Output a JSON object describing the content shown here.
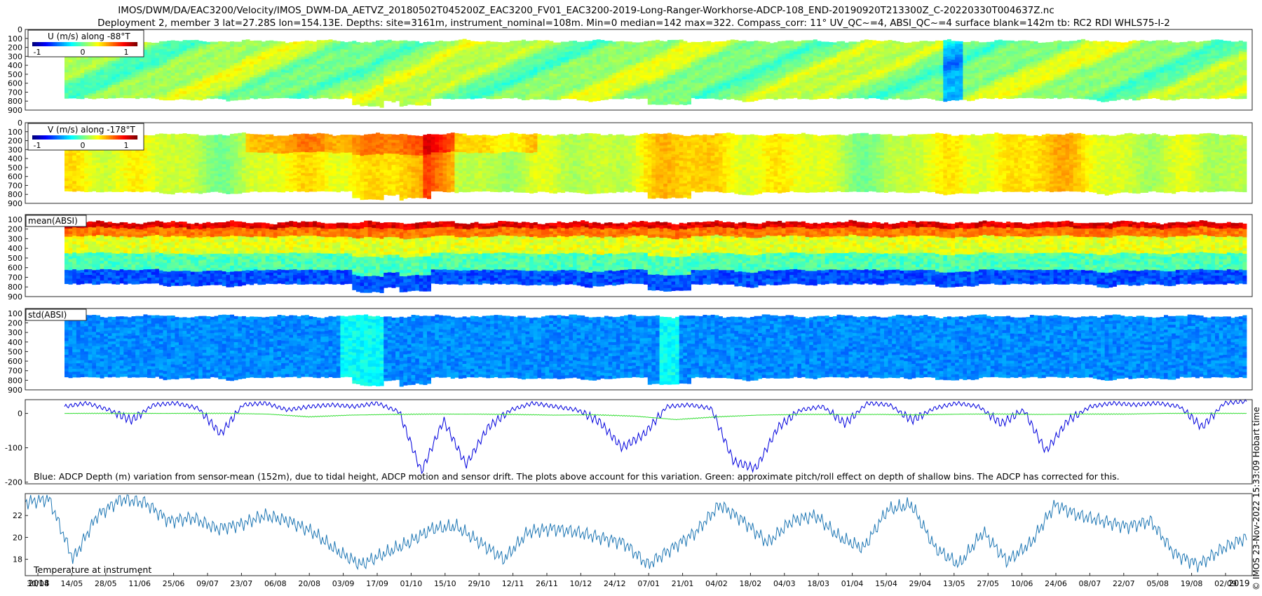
{
  "header": {
    "title_line1": "IMOS/DWM/DA/EAC3200/Velocity/IMOS_DWM-DA_AETVZ_20180502T045200Z_EAC3200_FV01_EAC3200-2019-Long-Ranger-Workhorse-ADCP-108_END-20190920T213300Z_C-20220330T004637Z.nc",
    "title_line2": "Deployment 2, member 3 lat=27.28S lon=154.13E. Depths: site=3161m, instrument_nominal=108m. Min=0 median=142 max=322. Compass_corr: 11° UV_QC~=4, ABSI_QC~=4 surface blank=142m tb: RC2 RDI WHLS75-I-2"
  },
  "side_label": "© IMOS 23-Nov-2022 15:33:09 Hobart time",
  "chart_data": [
    {
      "type": "heatmap",
      "legend_label": "U (m/s) along -88°T",
      "colorbar_ticks": [
        "-1",
        "0",
        "1"
      ],
      "y_ticks": [
        "0",
        "100",
        "200",
        "300",
        "400",
        "500",
        "600",
        "700",
        "800",
        "900"
      ],
      "ylim": [
        900,
        0
      ],
      "palette": "jet",
      "profile": "velocity_u",
      "colormap_range": [
        -1,
        1
      ],
      "y_range_m": [
        125,
        760
      ]
    },
    {
      "type": "heatmap",
      "legend_label": "V (m/s) along -178°T",
      "colorbar_ticks": [
        "-1",
        "0",
        "1"
      ],
      "y_ticks": [
        "0",
        "100",
        "200",
        "300",
        "400",
        "500",
        "600",
        "700",
        "800",
        "900"
      ],
      "ylim": [
        900,
        0
      ],
      "palette": "jet",
      "profile": "velocity_v",
      "colormap_range": [
        -1,
        1
      ],
      "y_range_m": [
        125,
        760
      ]
    },
    {
      "type": "heatmap",
      "legend_label": "mean(ABSI)",
      "y_ticks": [
        "100",
        "200",
        "300",
        "400",
        "500",
        "600",
        "700",
        "800",
        "900"
      ],
      "ylim": [
        900,
        50
      ],
      "palette": "jet",
      "profile": "absi_mean",
      "y_range_m": [
        125,
        760
      ]
    },
    {
      "type": "heatmap",
      "legend_label": "std(ABSI)",
      "y_ticks": [
        "100",
        "200",
        "300",
        "400",
        "500",
        "600",
        "700",
        "800",
        "900"
      ],
      "ylim": [
        900,
        50
      ],
      "palette": "jet",
      "profile": "absi_std",
      "y_range_m": [
        125,
        760
      ]
    },
    {
      "type": "line",
      "y_ticks": [
        "0",
        "-100",
        "-200"
      ],
      "ylim": [
        -205,
        40
      ],
      "series": [
        {
          "color": "#0000dd",
          "key_values": [
            20,
            30,
            10,
            -20,
            25,
            30,
            15,
            -60,
            25,
            30,
            10,
            20,
            25,
            20,
            30,
            5,
            -170,
            -20,
            -150,
            -40,
            10,
            30,
            20,
            10,
            -25,
            -100,
            -60,
            20,
            25,
            15,
            -140,
            -160,
            -40,
            10,
            20,
            -30,
            30,
            25,
            -20,
            15,
            30,
            20,
            -30,
            10,
            -110,
            -20,
            20,
            30,
            25,
            30,
            20,
            -40,
            30,
            35
          ]
        },
        {
          "color": "#33dd33",
          "key_values": [
            0,
            0,
            0,
            0,
            0,
            -2,
            -10,
            -5,
            -3,
            -2,
            -2,
            -3,
            -5,
            -4,
            -8,
            -18,
            -10,
            -5,
            -3,
            -3,
            -3,
            -4,
            -2,
            -2,
            -3,
            -2,
            -2,
            0,
            0,
            0
          ]
        }
      ],
      "annotation": "Blue: ADCP Depth (m) variation from sensor-mean (152m), due to tidal height, ADCP motion and sensor drift. The plots above account for this variation. Green: approximate pitch/roll effect on depth of shallow bins. The ADCP has corrected for this."
    },
    {
      "type": "line",
      "y_ticks": [
        "18",
        "20",
        "22"
      ],
      "ylim": [
        16.5,
        24.0
      ],
      "series": [
        {
          "color": "#1f77b4",
          "key_values": [
            23.2,
            23.5,
            18.0,
            22.0,
            23.5,
            23.2,
            21.5,
            21.8,
            20.8,
            21.2,
            22.0,
            21.5,
            20.5,
            18.8,
            17.5,
            18.5,
            19.5,
            20.8,
            21.0,
            19.5,
            18.0,
            20.5,
            20.8,
            20.5,
            20.0,
            19.5,
            17.5,
            19.0,
            20.5,
            23.0,
            21.5,
            19.5,
            21.5,
            22.0,
            20.0,
            19.0,
            22.5,
            23.0,
            19.0,
            17.5,
            20.5,
            17.8,
            19.5,
            23.0,
            22.0,
            21.5,
            21.0,
            21.5,
            18.5,
            17.5,
            19.0,
            20.0
          ]
        }
      ],
      "annotation": "Temperature at instrument"
    }
  ],
  "x_axis": {
    "year_left": "2018",
    "year_right": "2019",
    "tick_labels": [
      "30/04",
      "14/05",
      "28/05",
      "11/06",
      "25/06",
      "09/07",
      "23/07",
      "06/08",
      "20/08",
      "03/09",
      "17/09",
      "01/10",
      "15/10",
      "29/10",
      "12/11",
      "26/11",
      "10/12",
      "24/12",
      "07/01",
      "21/01",
      "04/02",
      "18/02",
      "04/03",
      "18/03",
      "01/04",
      "15/04",
      "29/04",
      "13/05",
      "27/05",
      "10/06",
      "24/06",
      "08/07",
      "22/07",
      "05/08",
      "19/08",
      "02/09"
    ]
  }
}
